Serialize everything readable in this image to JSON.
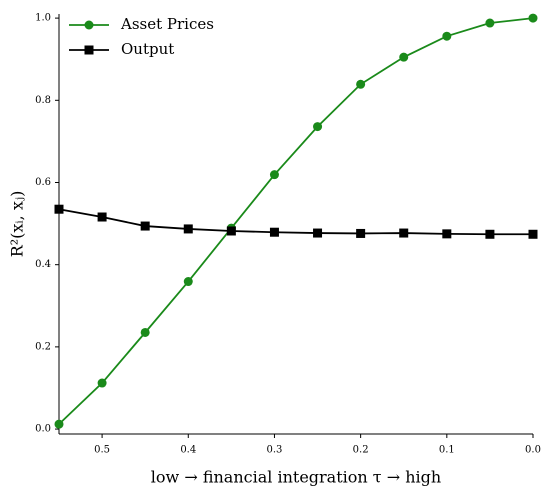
{
  "chart_data": {
    "type": "line",
    "x_label": "low    →    financial integration τ    →    high",
    "y_label": "R²(xᵢ, xⱼ)",
    "x": [
      0.55,
      0.5,
      0.45,
      0.4,
      0.35,
      0.3,
      0.25,
      0.2,
      0.15,
      0.1,
      0.05,
      0.0
    ],
    "series": [
      {
        "name": "Asset Prices",
        "color": "#1a8a1a",
        "marker": "circle",
        "values": [
          0.012,
          0.112,
          0.235,
          0.359,
          0.489,
          0.619,
          0.736,
          0.839,
          0.905,
          0.956,
          0.988,
          1.0
        ]
      },
      {
        "name": "Output",
        "color": "#000000",
        "marker": "square",
        "values": [
          0.535,
          0.516,
          0.494,
          0.487,
          0.482,
          0.479,
          0.477,
          0.476,
          0.477,
          0.475,
          0.474,
          0.474
        ]
      }
    ],
    "xlim": [
      0.55,
      0.0
    ],
    "ylim": [
      -0.012,
      1.01
    ],
    "xticks": [
      0.5,
      0.4,
      0.3,
      0.2,
      0.1,
      {
        "value": 0,
        "label": "0.0"
      }
    ],
    "yticks": [
      {
        "value": 0,
        "label": "0.0"
      },
      0.2,
      0.4,
      0.6,
      0.8,
      {
        "value": 1,
        "label": "1.0"
      }
    ],
    "legend": "upper left"
  }
}
